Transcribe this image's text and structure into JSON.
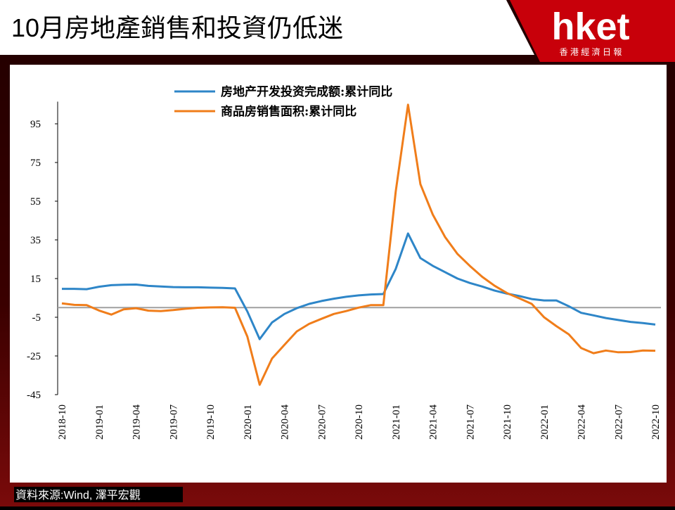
{
  "header": {
    "title": "10月房地產銷售和投資仍低迷",
    "logo": "hket",
    "logo_subtitle": "香 港 經 濟 日 報"
  },
  "source": "資料來源:Wind, 澤平宏觀",
  "chart_data": {
    "type": "line",
    "x": [
      "2018-10",
      "2018-11",
      "2018-12",
      "2019-01",
      "2019-02",
      "2019-03",
      "2019-04",
      "2019-05",
      "2019-06",
      "2019-07",
      "2019-08",
      "2019-09",
      "2019-10",
      "2019-11",
      "2019-12",
      "2020-01",
      "2020-02",
      "2020-03",
      "2020-04",
      "2020-05",
      "2020-06",
      "2020-07",
      "2020-08",
      "2020-09",
      "2020-10",
      "2020-11",
      "2020-12",
      "2021-01",
      "2021-02",
      "2021-03",
      "2021-04",
      "2021-05",
      "2021-06",
      "2021-07",
      "2021-08",
      "2021-09",
      "2021-10",
      "2021-11",
      "2021-12",
      "2022-01",
      "2022-02",
      "2022-03",
      "2022-04",
      "2022-05",
      "2022-06",
      "2022-07",
      "2022-08",
      "2022-09",
      "2022-10"
    ],
    "xticks": [
      "2018-10",
      "2019-01",
      "2019-04",
      "2019-07",
      "2019-10",
      "2020-01",
      "2020-04",
      "2020-07",
      "2020-10",
      "2021-01",
      "2021-04",
      "2021-07",
      "2021-10",
      "2022-01",
      "2022-04",
      "2022-07",
      "2022-10"
    ],
    "series": [
      {
        "name": "房地产开发投资完成额:累计同比",
        "color": "#2e86c8",
        "values": [
          9.7,
          9.7,
          9.5,
          10.8,
          11.6,
          11.8,
          11.9,
          11.2,
          10.9,
          10.6,
          10.5,
          10.5,
          10.3,
          10.2,
          9.9,
          -2,
          -16.3,
          -7.7,
          -3.3,
          -0.3,
          1.9,
          3.4,
          4.6,
          5.6,
          6.3,
          6.8,
          7.0,
          20,
          38.3,
          25.6,
          21.6,
          18.3,
          15.0,
          12.7,
          10.9,
          8.8,
          7.2,
          6.0,
          4.4,
          3.7,
          3.7,
          0.7,
          -2.7,
          -4.0,
          -5.4,
          -6.4,
          -7.4,
          -8.0,
          -8.8
        ]
      },
      {
        "name": "商品房销售面积:累计同比",
        "color": "#f07d1a",
        "values": [
          2.2,
          1.4,
          1.3,
          -1.5,
          -3.6,
          -0.9,
          -0.3,
          -1.6,
          -1.8,
          -1.3,
          -0.6,
          -0.1,
          0.1,
          0.2,
          -0.1,
          -15,
          -39.9,
          -26.3,
          -19.3,
          -12.3,
          -8.4,
          -5.8,
          -3.3,
          -1.8,
          0.0,
          1.3,
          1.3,
          60,
          104.9,
          63.8,
          48.1,
          36.4,
          27.7,
          21.5,
          15.9,
          11.3,
          7.5,
          4.8,
          1.9,
          -5,
          -9.6,
          -13.8,
          -20.9,
          -23.6,
          -22.2,
          -23.1,
          -23.0,
          -22.2,
          -22.3
        ]
      }
    ],
    "ylim": [
      -45,
      105
    ],
    "yticks": [
      95,
      75,
      55,
      35,
      15,
      -5,
      -25,
      -45
    ]
  }
}
